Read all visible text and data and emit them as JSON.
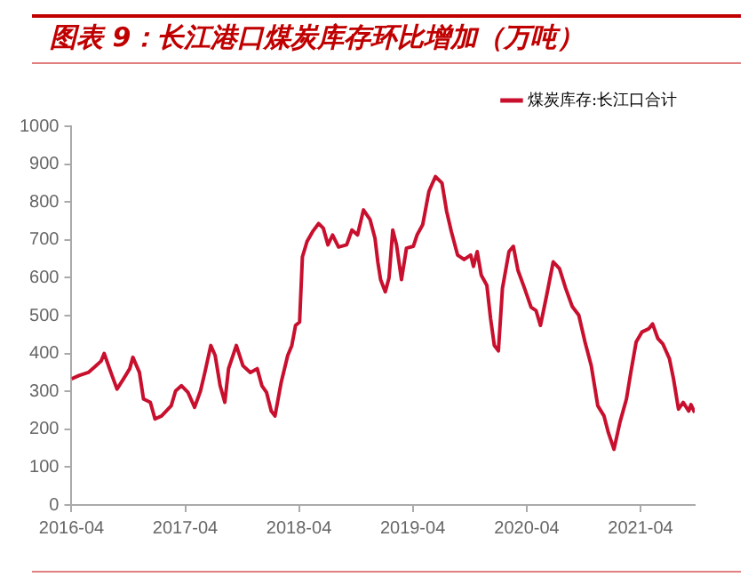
{
  "chart_data": {
    "type": "line",
    "title": "图表 9：长江港口煤炭库存环比增加（万吨）",
    "legend": "top right",
    "marker": "none",
    "grid": false,
    "xlim": [
      "2016-04-01",
      "2021-09-22"
    ],
    "xticks": [
      "2016-04",
      "2017-04",
      "2018-04",
      "2019-04",
      "2020-04",
      "2021-04"
    ],
    "ylim": [
      0,
      1000
    ],
    "yticks": [
      0,
      100,
      200,
      300,
      400,
      500,
      600,
      700,
      800,
      900,
      1000
    ],
    "x": [
      "2016-04-01",
      "2016-04-25",
      "2016-05-25",
      "2016-06-15",
      "2016-07-05",
      "2016-07-15",
      "2016-08-01",
      "2016-08-25",
      "2016-09-15",
      "2016-10-05",
      "2016-10-15",
      "2016-11-05",
      "2016-11-18",
      "2016-12-10",
      "2016-12-25",
      "2017-01-15",
      "2017-02-15",
      "2017-03-01",
      "2017-03-20",
      "2017-04-10",
      "2017-05-01",
      "2017-05-20",
      "2017-06-03",
      "2017-06-22",
      "2017-07-06",
      "2017-07-22",
      "2017-08-06",
      "2017-08-18",
      "2017-09-12",
      "2017-10-03",
      "2017-10-27",
      "2017-11-18",
      "2017-12-03",
      "2017-12-18",
      "2018-01-02",
      "2018-01-14",
      "2018-02-03",
      "2018-02-24",
      "2018-03-09",
      "2018-03-21",
      "2018-04-03",
      "2018-04-12",
      "2018-04-27",
      "2018-05-15",
      "2018-06-03",
      "2018-06-18",
      "2018-07-03",
      "2018-07-18",
      "2018-08-06",
      "2018-09-01",
      "2018-09-18",
      "2018-10-06",
      "2018-10-25",
      "2018-11-15",
      "2018-12-01",
      "2018-12-10",
      "2018-12-19",
      "2019-01-03",
      "2019-01-15",
      "2019-01-27",
      "2019-02-08",
      "2019-02-24",
      "2019-03-12",
      "2019-04-03",
      "2019-04-15",
      "2019-05-03",
      "2019-05-23",
      "2019-06-13",
      "2019-07-04",
      "2019-07-19",
      "2019-08-03",
      "2019-08-23",
      "2019-09-13",
      "2019-10-04",
      "2019-10-13",
      "2019-10-25",
      "2019-11-07",
      "2019-11-25",
      "2019-12-07",
      "2019-12-19",
      "2020-01-01",
      "2020-01-14",
      "2020-02-04",
      "2020-02-18",
      "2020-03-04",
      "2020-03-25",
      "2020-04-15",
      "2020-05-01",
      "2020-05-15",
      "2020-06-04",
      "2020-06-25",
      "2020-07-15",
      "2020-08-04",
      "2020-08-25",
      "2020-09-15",
      "2020-10-05",
      "2020-10-25",
      "2020-11-15",
      "2020-12-05",
      "2020-12-19",
      "2021-01-06",
      "2021-01-25",
      "2021-02-15",
      "2021-03-01",
      "2021-03-18",
      "2021-04-06",
      "2021-04-27",
      "2021-05-10",
      "2021-05-27",
      "2021-06-12",
      "2021-07-03",
      "2021-07-16",
      "2021-08-01",
      "2021-08-16",
      "2021-09-03",
      "2021-09-10",
      "2021-09-22"
    ],
    "series": [
      {
        "name": "煤炭库存:长江口合计",
        "color": "#c8102e",
        "values": [
          333,
          342,
          350,
          365,
          380,
          400,
          360,
          306,
          333,
          360,
          390,
          350,
          280,
          271,
          227,
          235,
          262,
          301,
          315,
          297,
          258,
          301,
          350,
          421,
          395,
          315,
          271,
          360,
          421,
          368,
          350,
          360,
          315,
          297,
          248,
          235,
          324,
          395,
          421,
          474,
          483,
          655,
          696,
          722,
          743,
          731,
          687,
          713,
          681,
          687,
          726,
          713,
          779,
          754,
          704,
          642,
          595,
          563,
          600,
          726,
          687,
          595,
          678,
          683,
          713,
          740,
          828,
          867,
          850,
          775,
          722,
          660,
          648,
          660,
          630,
          669,
          607,
          580,
          492,
          421,
          407,
          572,
          669,
          683,
          619,
          572,
          522,
          513,
          474,
          554,
          642,
          624,
          572,
          524,
          501,
          430,
          368,
          262,
          235,
          191,
          147,
          218,
          280,
          350,
          430,
          457,
          465,
          478,
          439,
          425,
          386,
          333,
          253,
          271,
          248,
          265,
          244
        ]
      }
    ]
  }
}
